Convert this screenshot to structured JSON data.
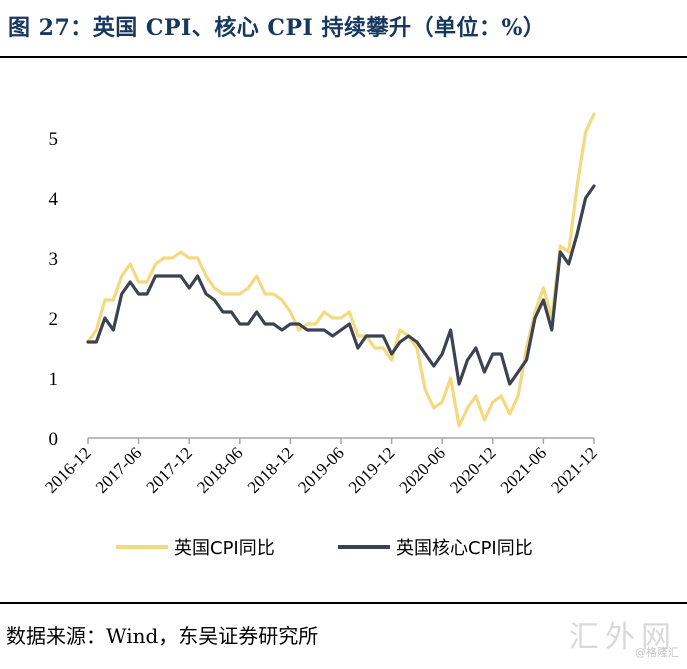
{
  "title": "图 27：英国 CPI、核心 CPI 持续攀升（单位：%）",
  "source": "数据来源：Wind，东吴证券研究所",
  "watermark": "汇外网",
  "watermark_sub": "@格隆汇",
  "chart_data": {
    "type": "line",
    "title": "",
    "xlabel": "",
    "ylabel": "",
    "ylim": [
      0,
      5.5
    ],
    "yticks": [
      "0",
      "1",
      "2",
      "3",
      "4",
      "5"
    ],
    "xticks": [
      "2016-12",
      "2017-06",
      "2017-12",
      "2018-06",
      "2018-12",
      "2019-06",
      "2019-12",
      "2020-06",
      "2020-12",
      "2021-06",
      "2021-12"
    ],
    "x": [
      "2016-12",
      "2017-01",
      "2017-02",
      "2017-03",
      "2017-04",
      "2017-05",
      "2017-06",
      "2017-07",
      "2017-08",
      "2017-09",
      "2017-10",
      "2017-11",
      "2017-12",
      "2018-01",
      "2018-02",
      "2018-03",
      "2018-04",
      "2018-05",
      "2018-06",
      "2018-07",
      "2018-08",
      "2018-09",
      "2018-10",
      "2018-11",
      "2018-12",
      "2019-01",
      "2019-02",
      "2019-03",
      "2019-04",
      "2019-05",
      "2019-06",
      "2019-07",
      "2019-08",
      "2019-09",
      "2019-10",
      "2019-11",
      "2019-12",
      "2020-01",
      "2020-02",
      "2020-03",
      "2020-04",
      "2020-05",
      "2020-06",
      "2020-07",
      "2020-08",
      "2020-09",
      "2020-10",
      "2020-11",
      "2020-12",
      "2021-01",
      "2021-02",
      "2021-03",
      "2021-04",
      "2021-05",
      "2021-06",
      "2021-07",
      "2021-08",
      "2021-09",
      "2021-10",
      "2021-11",
      "2021-12"
    ],
    "series": [
      {
        "name": "英国CPI同比",
        "color": "#f5d97e",
        "values": [
          1.6,
          1.8,
          2.3,
          2.3,
          2.7,
          2.9,
          2.6,
          2.6,
          2.9,
          3.0,
          3.0,
          3.1,
          3.0,
          3.0,
          2.7,
          2.5,
          2.4,
          2.4,
          2.4,
          2.5,
          2.7,
          2.4,
          2.4,
          2.3,
          2.1,
          1.8,
          1.9,
          1.9,
          2.1,
          2.0,
          2.0,
          2.1,
          1.7,
          1.7,
          1.5,
          1.5,
          1.3,
          1.8,
          1.7,
          1.5,
          0.8,
          0.5,
          0.6,
          1.0,
          0.2,
          0.5,
          0.7,
          0.3,
          0.6,
          0.7,
          0.4,
          0.7,
          1.5,
          2.1,
          2.5,
          2.0,
          3.2,
          3.1,
          4.2,
          5.1,
          5.4
        ]
      },
      {
        "name": "英国核心CPI同比",
        "color": "#3b4250",
        "values": [
          1.6,
          1.6,
          2.0,
          1.8,
          2.4,
          2.6,
          2.4,
          2.4,
          2.7,
          2.7,
          2.7,
          2.7,
          2.5,
          2.7,
          2.4,
          2.3,
          2.1,
          2.1,
          1.9,
          1.9,
          2.1,
          1.9,
          1.9,
          1.8,
          1.9,
          1.9,
          1.8,
          1.8,
          1.8,
          1.7,
          1.8,
          1.9,
          1.5,
          1.7,
          1.7,
          1.7,
          1.4,
          1.6,
          1.7,
          1.6,
          1.4,
          1.2,
          1.4,
          1.8,
          0.9,
          1.3,
          1.5,
          1.1,
          1.4,
          1.4,
          0.9,
          1.1,
          1.3,
          2.0,
          2.3,
          1.8,
          3.1,
          2.9,
          3.4,
          4.0,
          4.2
        ]
      }
    ],
    "legend_position": "bottom",
    "grid": false
  }
}
